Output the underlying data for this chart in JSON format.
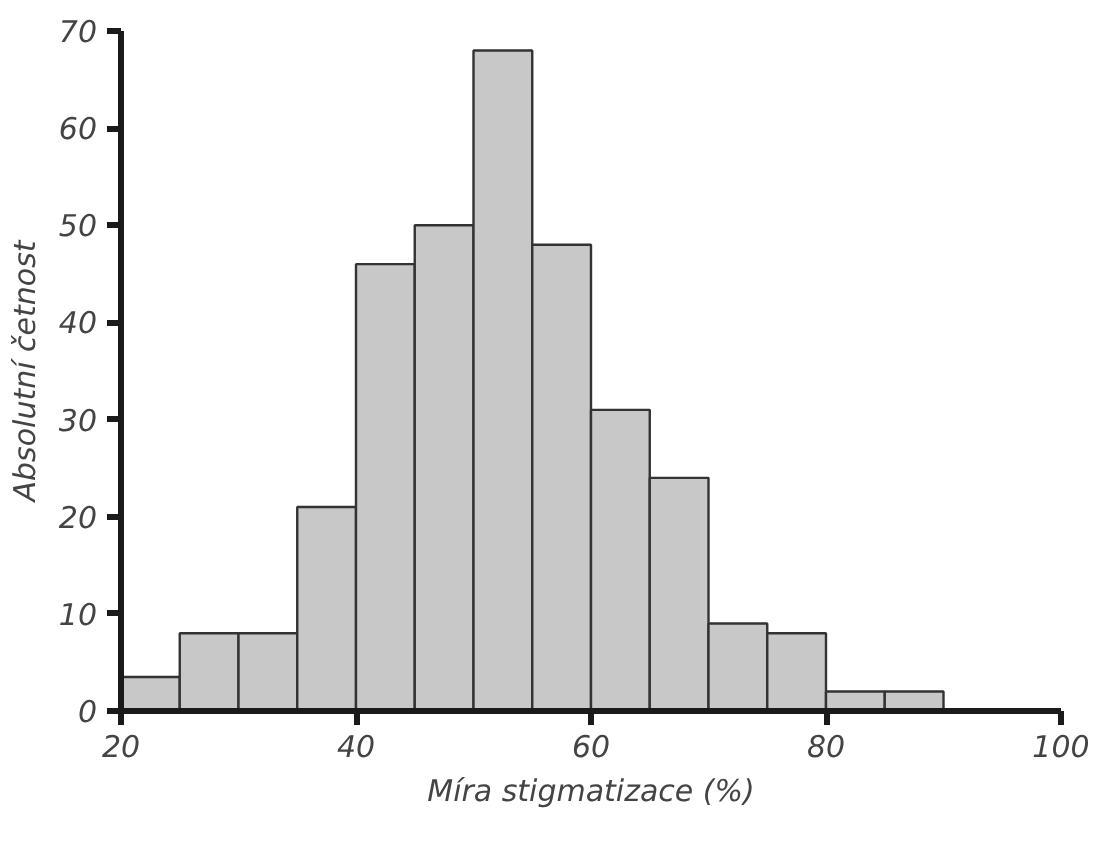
{
  "chart_data": {
    "type": "histogram",
    "xlabel": "Míra stigmatizace (%)",
    "ylabel": "Absolutní četnost",
    "bins": [
      20,
      25,
      30,
      35,
      40,
      45,
      50,
      55,
      60,
      65,
      70,
      75,
      80,
      85,
      90
    ],
    "values": [
      3.5,
      8,
      8,
      21,
      46,
      50,
      68,
      48,
      31,
      24,
      9,
      8,
      2,
      2
    ],
    "color": "#c8c8c8",
    "xlim": [
      20,
      100
    ],
    "xticks": [
      20,
      40,
      60,
      80,
      100
    ],
    "ylim": [
      0,
      70
    ],
    "yticks": [
      0,
      10,
      20,
      30,
      40,
      50,
      60,
      70
    ],
    "grid": false
  }
}
